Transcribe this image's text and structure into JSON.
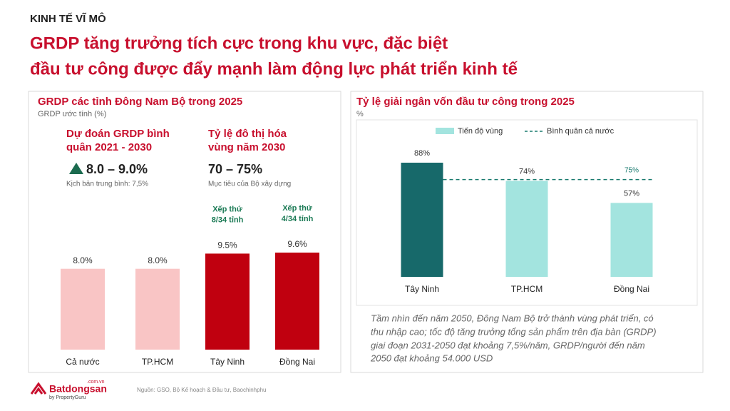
{
  "header": {
    "section": "KINH TẾ VĨ MÔ",
    "title": [
      "GRDP tăng trưởng tích cực trong khu vực, đặc biệt",
      "đầu tư công được đẩy mạnh làm động lực phát triển kinh tế"
    ]
  },
  "callouts": [
    {
      "title": [
        "Dự đoán GRDP bình",
        "quân 2021 - 2030"
      ],
      "value": "8.0 – 9.0%",
      "note": "Kịch bản trung bình: 7,5%"
    },
    {
      "title": [
        "Tỷ lệ đô thị hóa",
        "vùng năm 2030"
      ],
      "value": "70 – 75%",
      "note": "Mục tiêu của Bộ xây dựng"
    }
  ],
  "chart_data": [
    {
      "type": "bar",
      "title": "GRDP các tỉnh Đông Nam Bộ trong 2025",
      "subtitle": "GRDP ước tính (%)",
      "categories": [
        "Cả nước",
        "TP.HCM",
        "Tây Ninh",
        "Đồng Nai"
      ],
      "values": [
        8.0,
        8.0,
        9.5,
        9.6
      ],
      "value_labels": [
        "8.0%",
        "8.0%",
        "9.5%",
        "9.6%"
      ],
      "colors": [
        "#f9c5c5",
        "#f9c5c5",
        "#c0000f",
        "#c0000f"
      ],
      "annotations": [
        null,
        null,
        [
          "Xếp thứ",
          "8/34 tỉnh"
        ],
        [
          "Xếp thứ",
          "4/34 tỉnh"
        ]
      ]
    },
    {
      "type": "bar",
      "title": "Tỷ lệ giải ngân vốn đầu tư công trong 2025",
      "subtitle": "%",
      "categories": [
        "Tây Ninh",
        "TP.HCM",
        "Đồng Nai"
      ],
      "series": [
        {
          "name": "Tiến độ vùng",
          "color": "#a3e4df",
          "values": [
            88,
            74,
            57
          ],
          "value_labels": [
            "88%",
            "74%",
            "57%"
          ],
          "colors": [
            "#17696a",
            "#a3e4df",
            "#a3e4df"
          ]
        }
      ],
      "reference_line": {
        "name": "Bình quân cả nước",
        "value": 75,
        "label": "75%",
        "color": "#17796d"
      }
    }
  ],
  "note": [
    "Tầm nhìn đến năm 2050, Đông Nam Bộ trở thành vùng phát triển, có",
    "thu nhập cao; tốc độ tăng trưởng tổng sản phẩm trên địa bàn (GRDP)",
    "giai đoạn 2031-2050 đạt khoảng 7,5%/năm, GRDP/người đến năm",
    "2050 đạt khoảng 54.000 USD"
  ],
  "footer": {
    "brand": "Batdongsan",
    "domain": ".com.vn",
    "byline": "by PropertyGuru",
    "source": "Nguồn: GSO, Bộ Kế hoạch & Đầu tư, Baochinhphu"
  }
}
